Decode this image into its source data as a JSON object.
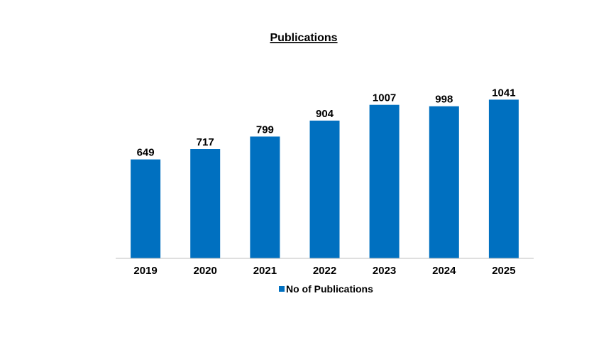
{
  "chart_data": {
    "type": "bar",
    "title": "Publications",
    "categories": [
      "2019",
      "2020",
      "2021",
      "2022",
      "2023",
      "2024",
      "2025"
    ],
    "series": [
      {
        "name": "No of Publications",
        "values": [
          649,
          717,
          799,
          904,
          1007,
          998,
          1041
        ]
      }
    ],
    "xlabel": "",
    "ylabel": "",
    "ylim": [
      0,
      1220
    ],
    "grid": false,
    "legend": "bottom",
    "data_labels": true,
    "color": "#0070C0"
  }
}
